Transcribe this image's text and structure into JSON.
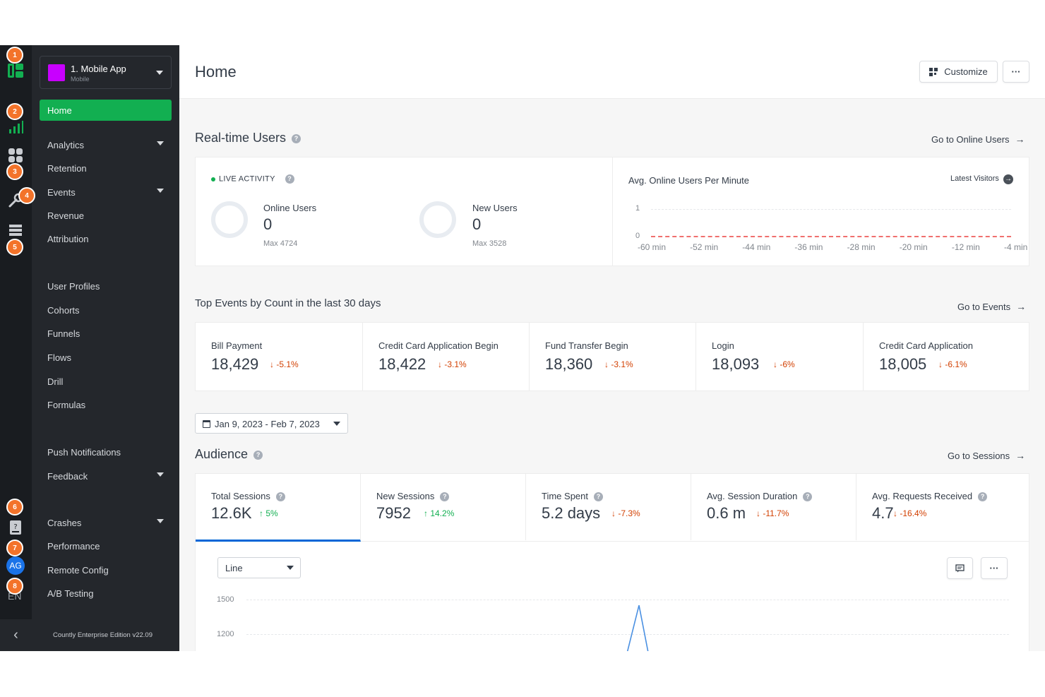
{
  "rail": {
    "badges": [
      "1",
      "2",
      "3",
      "4",
      "5",
      "6",
      "7",
      "8"
    ],
    "avatar": "AG",
    "language": "EN"
  },
  "sidebar": {
    "app_name": "1. Mobile App",
    "app_type": "Mobile",
    "home_label": "Home",
    "items": [
      {
        "label": "Analytics",
        "dropdown": true
      },
      {
        "label": "Retention",
        "dropdown": false
      },
      {
        "label": "Events",
        "dropdown": true
      },
      {
        "label": "Revenue",
        "dropdown": false
      },
      {
        "label": "Attribution",
        "dropdown": false
      },
      {
        "label": "User Profiles",
        "dropdown": false
      },
      {
        "label": "Cohorts",
        "dropdown": false
      },
      {
        "label": "Funnels",
        "dropdown": false
      },
      {
        "label": "Flows",
        "dropdown": false
      },
      {
        "label": "Drill",
        "dropdown": false
      },
      {
        "label": "Formulas",
        "dropdown": false
      },
      {
        "label": "Push Notifications",
        "dropdown": false
      },
      {
        "label": "Feedback",
        "dropdown": true
      },
      {
        "label": "Crashes",
        "dropdown": true
      },
      {
        "label": "Performance",
        "dropdown": false
      },
      {
        "label": "Remote Config",
        "dropdown": false
      },
      {
        "label": "A/B Testing",
        "dropdown": false
      }
    ],
    "version": "Countly Enterprise Edition v22.09"
  },
  "header": {
    "title": "Home",
    "customize_label": "Customize",
    "more_label": "···"
  },
  "realtime": {
    "title": "Real-time Users",
    "go_link": "Go to Online Users",
    "live_label": "LIVE ACTIVITY",
    "online": {
      "label": "Online Users",
      "value": "0",
      "max": "Max 4724"
    },
    "new": {
      "label": "New Users",
      "value": "0",
      "max": "Max 3528"
    },
    "chart_title": "Avg. Online Users Per Minute",
    "latest_visitors": "Latest Visitors"
  },
  "top_events": {
    "title": "Top Events by Count in the last 30 days",
    "go_link": "Go to Events",
    "events": [
      {
        "name": "Bill Payment",
        "value": "18,429",
        "trend": "-5.1%"
      },
      {
        "name": "Credit Card Application Begin",
        "value": "18,422",
        "trend": "-3.1%"
      },
      {
        "name": "Fund Transfer Begin",
        "value": "18,360",
        "trend": "-3.1%"
      },
      {
        "name": "Login",
        "value": "18,093",
        "trend": "-6%"
      },
      {
        "name": "Credit Card Application",
        "value": "18,005",
        "trend": "-6.1%"
      }
    ]
  },
  "date_range": "Jan 9, 2023 - Feb 7, 2023",
  "audience": {
    "title": "Audience",
    "go_link": "Go to Sessions",
    "metrics": [
      {
        "name": "Total Sessions",
        "value": "12.6K",
        "trend": "5%",
        "direction": "up"
      },
      {
        "name": "New Sessions",
        "value": "7952",
        "trend": "14.2%",
        "direction": "up"
      },
      {
        "name": "Time Spent",
        "value": "5.2 days",
        "trend": "-7.3%",
        "direction": "down"
      },
      {
        "name": "Avg. Session Duration",
        "value": "0.6 m",
        "trend": "-11.7%",
        "direction": "down"
      },
      {
        "name": "Avg. Requests Received",
        "value": "4.7",
        "trend": "-16.4%",
        "direction": "down"
      }
    ],
    "chart_type_select": "Line"
  },
  "chart_data": [
    {
      "type": "line",
      "title": "Avg. Online Users Per Minute",
      "x": [
        "-60 min",
        "-52 min",
        "-44 min",
        "-36 min",
        "-28 min",
        "-20 min",
        "-12 min",
        "-4 min"
      ],
      "series": [
        {
          "values": [
            0,
            0,
            0,
            0,
            0,
            0,
            0,
            0
          ]
        }
      ],
      "yticks": [
        "1",
        "0"
      ],
      "ylim": [
        0,
        1
      ],
      "colors": [
        "#f0706e"
      ]
    },
    {
      "type": "line",
      "title": "",
      "yticks": [
        "1500",
        "1200"
      ],
      "ylim": [
        1200,
        1500
      ],
      "series": [
        {
          "note_visible": "spike",
          "peak": 1450
        }
      ],
      "colors": [
        "#4a90e2"
      ]
    }
  ],
  "colors": {
    "accent": "#12af51",
    "down": "#d23f00",
    "up": "#12af51",
    "tab_active": "#0166d6"
  }
}
